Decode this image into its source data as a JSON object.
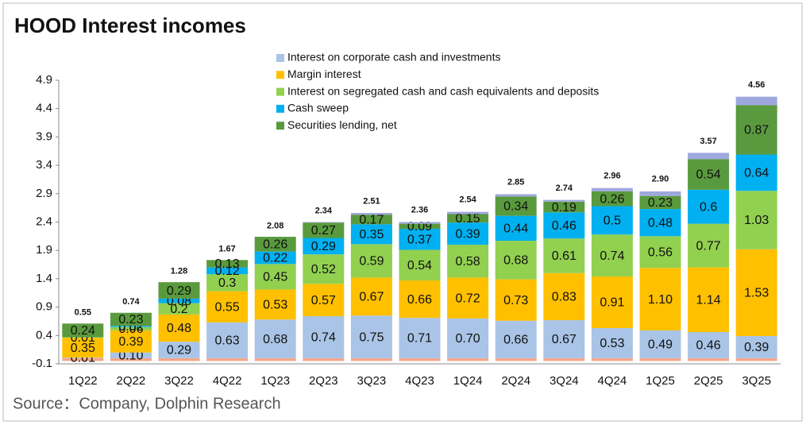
{
  "chart_data": {
    "type": "stacked_bar",
    "title": "HOOD Interest incomes",
    "source": "Source：Company, Dolphin Research",
    "categories": [
      "1Q22",
      "2Q22",
      "3Q22",
      "4Q22",
      "1Q23",
      "2Q23",
      "3Q23",
      "4Q23",
      "1Q24",
      "2Q24",
      "3Q24",
      "4Q24",
      "1Q25",
      "2Q25",
      "3Q25"
    ],
    "series": [
      {
        "color": "#f4a58a",
        "values": [
          -0.05,
          -0.05,
          -0.05,
          -0.05,
          -0.05,
          -0.05,
          -0.05,
          -0.05,
          -0.05,
          -0.05,
          -0.05,
          -0.05,
          -0.05,
          -0.05,
          -0.05
        ]
      },
      {
        "name": "Interest on corporate cash and investments",
        "color": "#a9c4e6",
        "values": [
          0.01,
          0.1,
          0.29,
          0.63,
          0.68,
          0.74,
          0.75,
          0.71,
          0.7,
          0.66,
          0.67,
          0.53,
          0.49,
          0.46,
          0.39
        ],
        "value_labels": [
          "0.01",
          "0.10",
          "0.29",
          "0.63",
          "0.68",
          "0.74",
          "0.75",
          "0.71",
          "0.70",
          "0.66",
          "0.67",
          "0.53",
          "0.49",
          "0.46",
          "0.39"
        ]
      },
      {
        "name": "Margin interest",
        "color": "#ffc000",
        "values": [
          0.35,
          0.39,
          0.48,
          0.55,
          0.53,
          0.57,
          0.67,
          0.66,
          0.72,
          0.73,
          0.83,
          0.91,
          1.1,
          1.14,
          1.53
        ],
        "value_labels": [
          "0.35",
          "0.39",
          "0.48",
          "0.55",
          "0.53",
          "0.57",
          "0.67",
          "0.66",
          "0.72",
          "0.73",
          "0.83",
          "0.91",
          "1.10",
          "1.14",
          "1.53"
        ]
      },
      {
        "name": "Interest on segregated cash and cash equivalents and deposits",
        "color": "#92d050",
        "values": [
          0.01,
          0.06,
          0.2,
          0.3,
          0.45,
          0.52,
          0.59,
          0.54,
          0.58,
          0.68,
          0.61,
          0.74,
          0.56,
          0.77,
          1.03
        ],
        "value_labels": [
          "0.01",
          "0.06",
          "0.2",
          "0.3",
          "0.45",
          "0.52",
          "0.59",
          "0.54",
          "0.58",
          "0.68",
          "0.61",
          "0.74",
          "0.56",
          "0.77",
          "1.03"
        ]
      },
      {
        "name": "Cash sweep",
        "color": "#00b0f0",
        "values": [
          null,
          0.02,
          0.08,
          0.12,
          0.22,
          0.29,
          0.35,
          0.37,
          0.39,
          0.44,
          0.46,
          0.5,
          0.48,
          0.6,
          0.64
        ],
        "value_labels": [
          null,
          "0.02",
          "0.08",
          "0.12",
          "0.22",
          "0.29",
          "0.35",
          "0.37",
          "0.39",
          "0.44",
          "0.46",
          "0.5",
          "0.48",
          "0.6",
          "0.64"
        ]
      },
      {
        "name": "Securities lending, net",
        "color": "#5a9a3e",
        "values": [
          0.24,
          0.23,
          0.29,
          0.13,
          0.26,
          0.27,
          0.17,
          0.09,
          0.15,
          0.34,
          0.19,
          0.26,
          0.23,
          0.54,
          0.87
        ],
        "value_labels": [
          "0.24",
          "0.23",
          "0.29",
          "0.13",
          "0.26",
          "0.27",
          "0.17",
          "0.09",
          "0.15",
          "0.34",
          "0.19",
          "0.26",
          "0.23",
          "0.54",
          "0.87"
        ]
      },
      {
        "color": "#9fa8de",
        "values": [
          null,
          null,
          null,
          null,
          null,
          0.01,
          0.03,
          0.03,
          0.04,
          0.04,
          0.03,
          0.06,
          0.08,
          0.11,
          0.15
        ]
      }
    ],
    "totals": [
      0.55,
      0.74,
      1.28,
      1.67,
      2.08,
      2.34,
      2.51,
      2.36,
      2.54,
      2.85,
      2.74,
      2.96,
      2.9,
      3.57,
      4.56
    ],
    "total_labels": [
      "0.55",
      "0.74",
      "1.28",
      "1.67",
      "2.08",
      "2.34",
      "2.51",
      "2.36",
      "2.54",
      "2.85",
      "2.74",
      "2.96",
      "2.90",
      "3.57",
      "4.56"
    ],
    "ylim": [
      -0.1,
      4.9
    ],
    "yticks": [
      -0.1,
      0.4,
      0.9,
      1.4,
      1.9,
      2.4,
      2.9,
      3.4,
      3.9,
      4.4,
      4.9
    ],
    "grid": false
  }
}
